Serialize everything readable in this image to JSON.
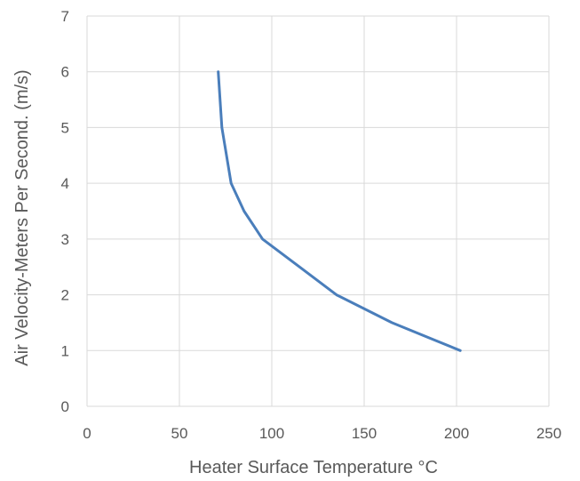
{
  "chart_data": {
    "type": "line",
    "title": "",
    "xlabel": "Heater Surface Temperature °C",
    "ylabel": "Air Velocity-Meters Per Second. (m/s)",
    "xlim": [
      0,
      250
    ],
    "ylim": [
      0,
      7
    ],
    "x_ticks": [
      0,
      50,
      100,
      150,
      200,
      250
    ],
    "y_ticks": [
      0,
      1,
      2,
      3,
      4,
      5,
      6,
      7
    ],
    "grid": true,
    "legend": "none",
    "series": [
      {
        "color": "#4a7ebb",
        "points": [
          {
            "x": 71,
            "y": 6
          },
          {
            "x": 73,
            "y": 5
          },
          {
            "x": 78,
            "y": 4
          },
          {
            "x": 85,
            "y": 3.5
          },
          {
            "x": 95,
            "y": 3
          },
          {
            "x": 115,
            "y": 2.5
          },
          {
            "x": 135,
            "y": 2
          },
          {
            "x": 165,
            "y": 1.5
          },
          {
            "x": 202,
            "y": 1
          }
        ]
      }
    ]
  }
}
